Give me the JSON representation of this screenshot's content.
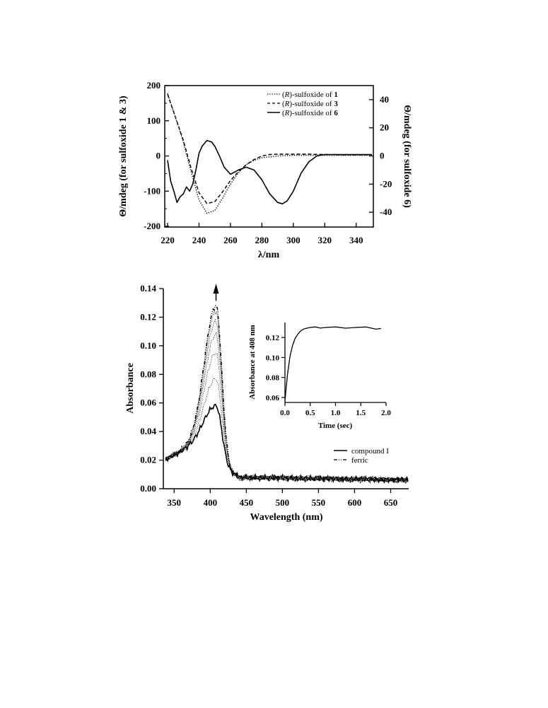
{
  "chart_data": [
    {
      "type": "line",
      "xlabel_prefix": "λ/",
      "xlabel_unit": "nm",
      "ylabel_left": "Θ/mdeg (for sulfoxide 1 & 3)",
      "ylabel_right": "Θ/mdeg (for sulfoxide 6)",
      "xlim": [
        220,
        350
      ],
      "ylim_left": [
        -200,
        200
      ],
      "ylim_right": [
        -50,
        50
      ],
      "x_ticks": [
        220,
        240,
        260,
        280,
        300,
        320,
        340
      ],
      "y_ticks_left": [
        200,
        100,
        0,
        -100,
        -200
      ],
      "y_ticks_right": [
        40,
        20,
        0,
        -20,
        -40
      ],
      "legend_position": "top-right",
      "series": [
        {
          "name_prefix": "(",
          "name_italic": "R",
          "name_mid": ")-sulfoxide of ",
          "name_bold": "1",
          "axis": "left",
          "style": "dotted",
          "x": [
            220,
            225,
            230,
            235,
            240,
            245,
            250,
            255,
            260,
            265,
            270,
            275,
            280,
            290,
            300,
            310,
            320,
            330,
            340,
            350
          ],
          "y": [
            178,
            110,
            40,
            -45,
            -125,
            -163,
            -155,
            -120,
            -80,
            -48,
            -25,
            -12,
            -5,
            0,
            2,
            2,
            2,
            2,
            2,
            2
          ]
        },
        {
          "name_prefix": "(",
          "name_italic": "R",
          "name_mid": ")-sulfoxide of ",
          "name_bold": "3",
          "axis": "left",
          "style": "dashed",
          "x": [
            220,
            225,
            230,
            235,
            240,
            245,
            250,
            255,
            260,
            265,
            270,
            275,
            280,
            285,
            290,
            300,
            310,
            320,
            330,
            340,
            350
          ],
          "y": [
            175,
            110,
            45,
            -35,
            -105,
            -135,
            -130,
            -102,
            -70,
            -45,
            -25,
            -10,
            0,
            4,
            5,
            5,
            5,
            4,
            3,
            3,
            3
          ]
        },
        {
          "name_prefix": "(",
          "name_italic": "R",
          "name_mid": ")-sulfoxide of ",
          "name_bold": "6",
          "axis": "right",
          "style": "solid",
          "x": [
            220,
            222,
            224,
            226,
            228,
            230,
            232,
            234,
            236,
            238,
            240,
            242,
            245,
            248,
            250,
            253,
            256,
            260,
            265,
            270,
            275,
            280,
            285,
            290,
            293,
            296,
            300,
            305,
            310,
            315,
            320,
            330,
            340,
            350
          ],
          "y": [
            -3,
            -18,
            -25,
            -33,
            -29,
            -27,
            -22,
            -25,
            -20,
            -10,
            2,
            7,
            11,
            10,
            7,
            0,
            -8,
            -13,
            -10,
            -8,
            -10,
            -17,
            -27,
            -33,
            -34,
            -32,
            -25,
            -12,
            -4,
            0,
            1,
            1,
            1,
            1
          ]
        }
      ]
    },
    {
      "type": "line",
      "xlabel": "Wavelength (nm)",
      "ylabel": "Absorbance",
      "xlim": [
        335,
        675
      ],
      "ylim": [
        0,
        0.14
      ],
      "x_ticks": [
        350,
        400,
        450,
        500,
        550,
        600,
        650
      ],
      "y_ticks": [
        "0.00",
        "0.02",
        "0.04",
        "0.06",
        "0.08",
        "0.10",
        "0.12",
        "0.14"
      ],
      "annotation": "upward arrow at 408 nm",
      "annotation_x": 408,
      "legend_position": "right",
      "legend": [
        "compound I",
        "ferric"
      ],
      "peak_wavelength": 408,
      "peak_heights": [
        0.058,
        0.077,
        0.095,
        0.108,
        0.117,
        0.124,
        0.128
      ],
      "series": [
        {
          "name": "compound I",
          "style": "solid",
          "peak": 0.058
        },
        {
          "name": "ferric",
          "style": "dashdot",
          "peak": 0.129
        }
      ],
      "inset": {
        "type": "line",
        "xlabel": "Time (sec)",
        "ylabel": "Absorbance at 408 nm",
        "xlim": [
          0,
          2.0
        ],
        "ylim": [
          0.055,
          0.135
        ],
        "x_ticks": [
          "0.0",
          "0.5",
          "1.0",
          "1.5",
          "2.0"
        ],
        "y_ticks": [
          "0.06",
          "0.08",
          "0.10",
          "0.12"
        ],
        "x": [
          0,
          0.05,
          0.1,
          0.15,
          0.2,
          0.25,
          0.3,
          0.35,
          0.4,
          0.5,
          0.6,
          0.7,
          0.8,
          1.0,
          1.2,
          1.4,
          1.6,
          1.8,
          1.9
        ],
        "y": [
          0.057,
          0.083,
          0.101,
          0.112,
          0.119,
          0.123,
          0.126,
          0.128,
          0.129,
          0.13,
          0.13,
          0.13,
          0.13,
          0.13,
          0.13,
          0.13,
          0.13,
          0.129,
          0.129
        ]
      }
    }
  ]
}
